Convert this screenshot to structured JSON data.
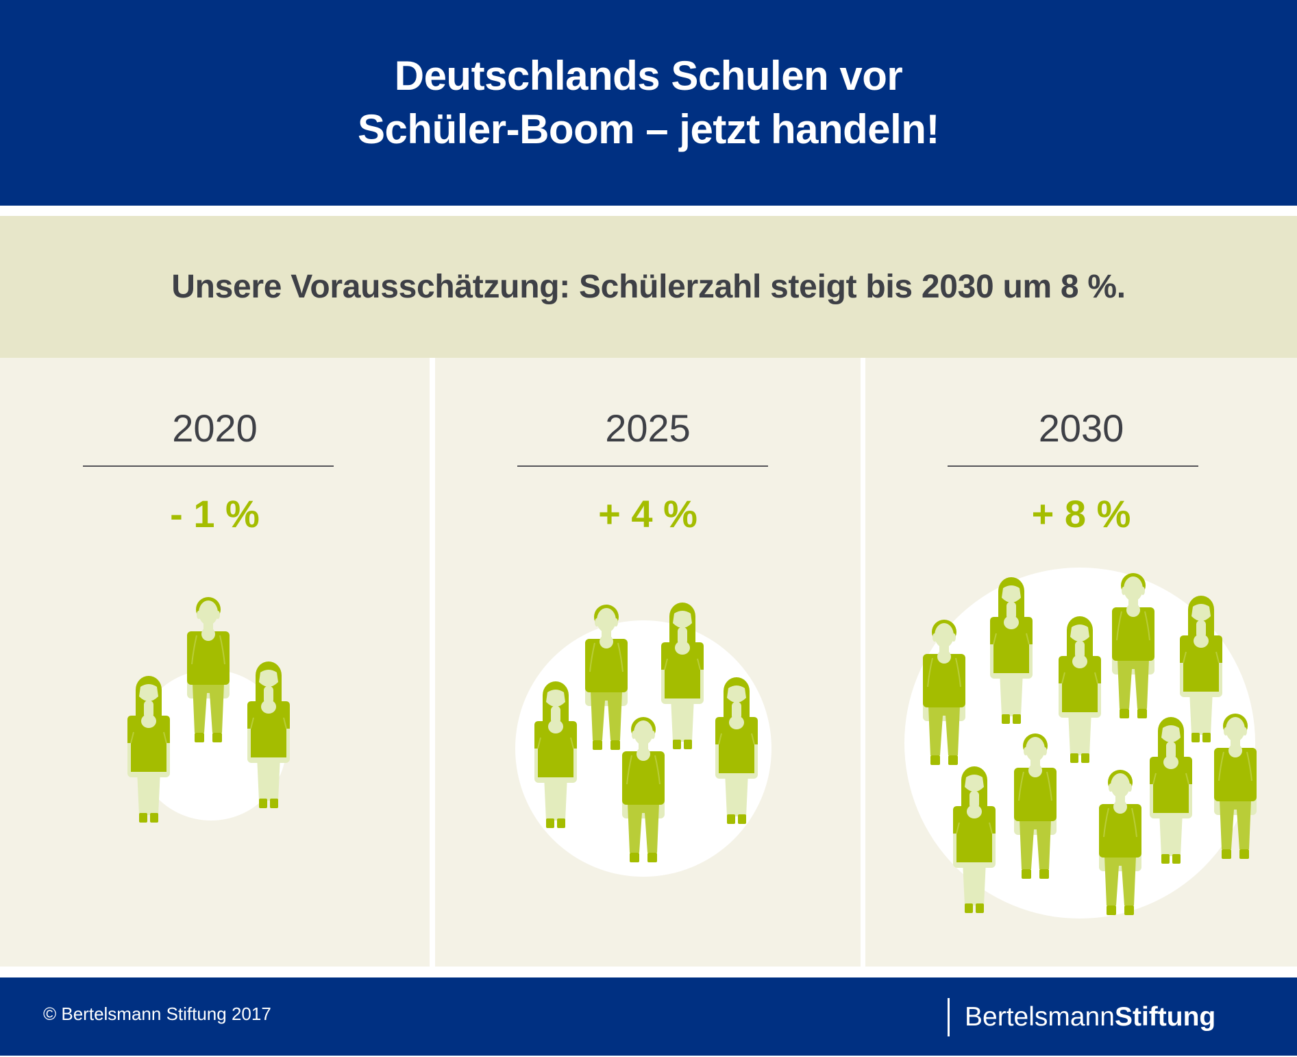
{
  "header": {
    "title_line1": "Deutschlands Schulen vor",
    "title_line2": "Schüler-Boom – jetzt handeln!"
  },
  "subtitle": "Unsere Vorausschätzung: Schülerzahl steigt bis 2030 um 8 %.",
  "colors": {
    "brand_blue": "#003082",
    "band": "#e7e6c9",
    "panel": "#f4f2e6",
    "accent_green": "#a4bd00",
    "text_dark": "#3e4046"
  },
  "panels": [
    {
      "year": "2020",
      "change": "- 1 %",
      "change_value": -1,
      "people_count": 3
    },
    {
      "year": "2025",
      "change": "+ 4 %",
      "change_value": 4,
      "people_count": 5
    },
    {
      "year": "2030",
      "change": "+ 8 %",
      "change_value": 8,
      "people_count": 10
    }
  ],
  "footer": {
    "copyright": "© Bertelsmann Stiftung 2017",
    "logo_part1": "Bertelsmann",
    "logo_part2": "Stiftung"
  },
  "icons": {
    "student_boy": "student-boy-icon",
    "student_girl": "student-girl-icon"
  }
}
